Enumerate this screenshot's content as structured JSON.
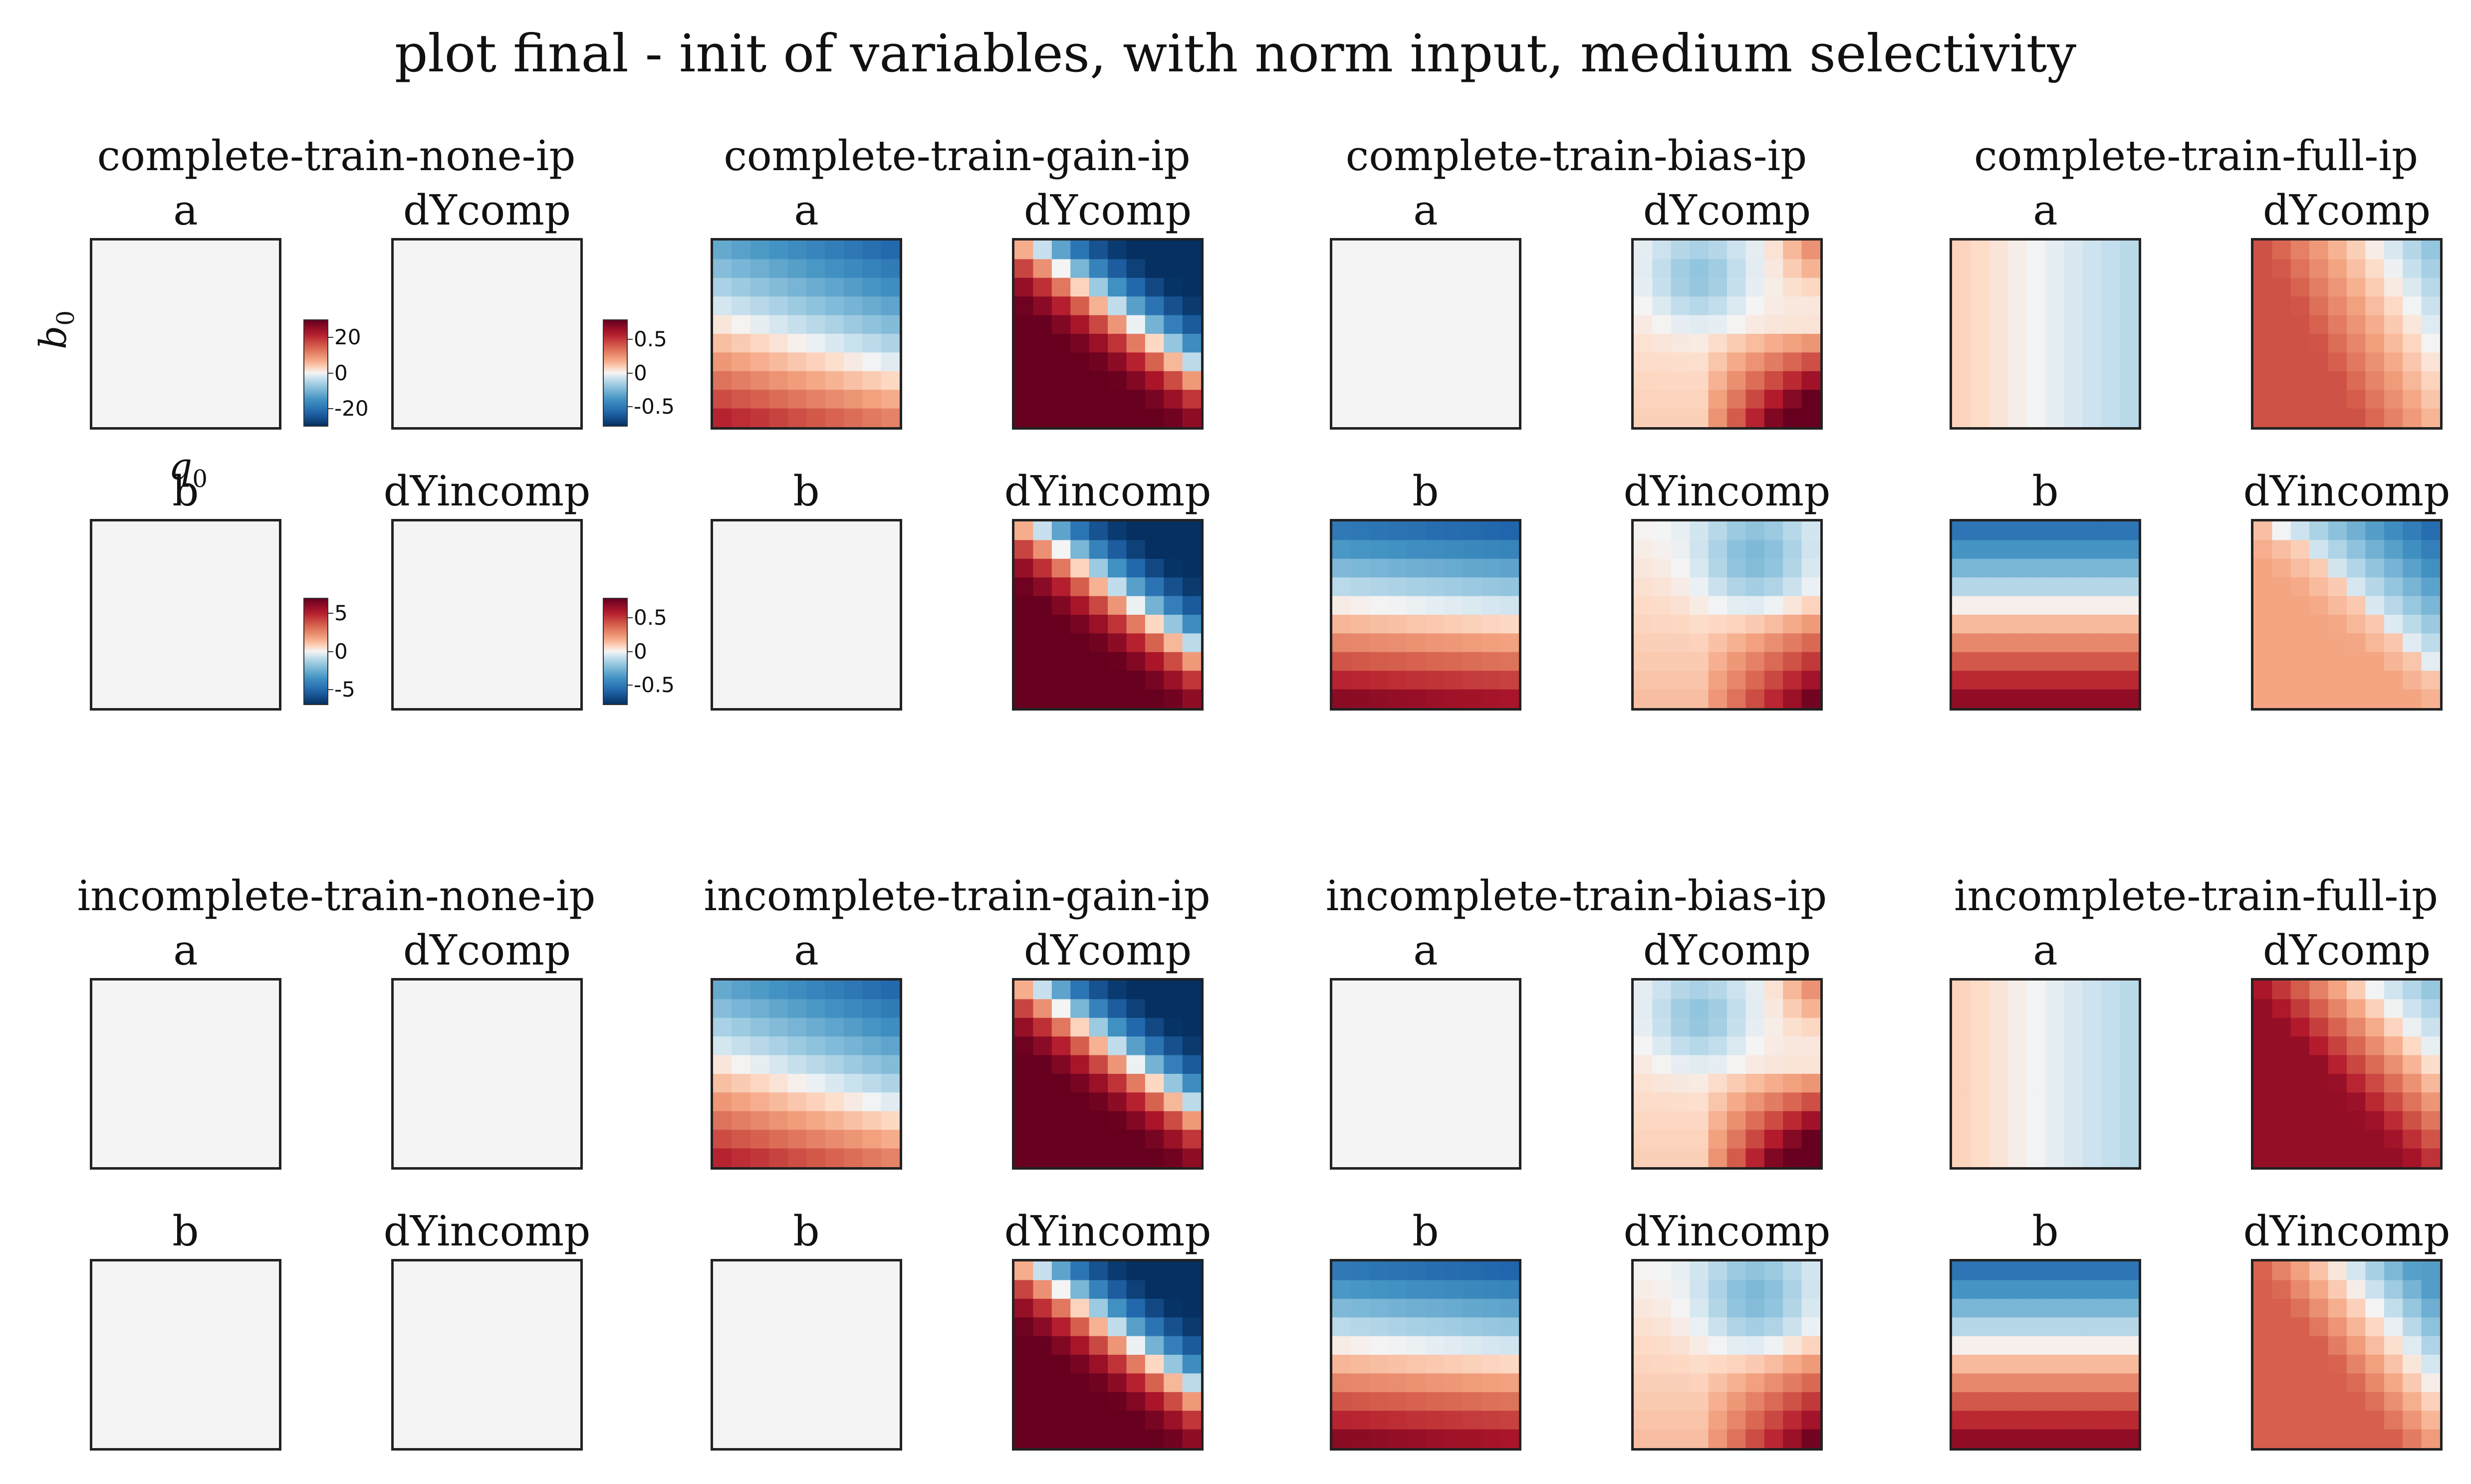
{
  "figure": {
    "title": "plot final - init of variables, with norm input, medium selectivity",
    "ylabel_var": "b",
    "ylabel_sub": "0",
    "xlabel_var": "q",
    "xlabel_sub": "0"
  },
  "colorbars": [
    {
      "ticks": [
        "20",
        "0",
        "-20"
      ],
      "range": [
        -30,
        30
      ],
      "tick_values": [
        20,
        0,
        -20
      ]
    },
    {
      "ticks": [
        "0.5",
        "0",
        "-0.5"
      ],
      "range": [
        -0.8,
        0.8
      ],
      "tick_values": [
        0.5,
        0,
        -0.5
      ]
    },
    {
      "ticks": [
        "5",
        "0",
        "-5"
      ],
      "range": [
        -7,
        7
      ],
      "tick_values": [
        5,
        0,
        -5
      ]
    },
    {
      "ticks": [
        "0.5",
        "0",
        "-0.5"
      ],
      "range": [
        -0.8,
        0.8
      ],
      "tick_values": [
        0.5,
        0,
        -0.5
      ]
    }
  ],
  "colors": {
    "colormap": "RdBu_r",
    "neutral": "#f4f4f4",
    "max_red": "#67001f",
    "max_blue": "#053061",
    "panel_border": "#222222"
  },
  "chart_data": {
    "type": "heatmap",
    "grid_size": 10,
    "value_range": [
      -1,
      1
    ],
    "groups": [
      {
        "title": "complete-train-none-ip",
        "panels": [
          {
            "label": "a",
            "pattern": "flat"
          },
          {
            "label": "dYcomp",
            "pattern": "flat"
          },
          {
            "label": "b",
            "pattern": "flat"
          },
          {
            "label": "dYincomp",
            "pattern": "flat"
          }
        ]
      },
      {
        "title": "complete-train-gain-ip",
        "panels": [
          {
            "label": "a",
            "pattern": "gain_a"
          },
          {
            "label": "dYcomp",
            "pattern": "gain_dy"
          },
          {
            "label": "b",
            "pattern": "flat"
          },
          {
            "label": "dYincomp",
            "pattern": "gain_dy"
          }
        ]
      },
      {
        "title": "complete-train-bias-ip",
        "panels": [
          {
            "label": "a",
            "pattern": "flat"
          },
          {
            "label": "dYcomp",
            "pattern": "bias_dy"
          },
          {
            "label": "b",
            "pattern": "bias_b"
          },
          {
            "label": "dYincomp",
            "pattern": "bias_dy2"
          }
        ]
      },
      {
        "title": "complete-train-full-ip",
        "panels": [
          {
            "label": "a",
            "pattern": "full_a"
          },
          {
            "label": "dYcomp",
            "pattern": "full_dy"
          },
          {
            "label": "b",
            "pattern": "full_b"
          },
          {
            "label": "dYincomp",
            "pattern": "full_dy2"
          }
        ]
      },
      {
        "title": "incomplete-train-none-ip",
        "panels": [
          {
            "label": "a",
            "pattern": "flat"
          },
          {
            "label": "dYcomp",
            "pattern": "flat"
          },
          {
            "label": "b",
            "pattern": "flat"
          },
          {
            "label": "dYincomp",
            "pattern": "flat"
          }
        ]
      },
      {
        "title": "incomplete-train-gain-ip",
        "panels": [
          {
            "label": "a",
            "pattern": "gain_a"
          },
          {
            "label": "dYcomp",
            "pattern": "gain_dy"
          },
          {
            "label": "b",
            "pattern": "flat"
          },
          {
            "label": "dYincomp",
            "pattern": "gain_dy"
          }
        ]
      },
      {
        "title": "incomplete-train-bias-ip",
        "panels": [
          {
            "label": "a",
            "pattern": "flat"
          },
          {
            "label": "dYcomp",
            "pattern": "bias_dy"
          },
          {
            "label": "b",
            "pattern": "bias_b"
          },
          {
            "label": "dYincomp",
            "pattern": "bias_dy2"
          }
        ]
      },
      {
        "title": "incomplete-train-full-ip",
        "panels": [
          {
            "label": "a",
            "pattern": "full_a"
          },
          {
            "label": "dYcomp",
            "pattern": "full_dy3"
          },
          {
            "label": "b",
            "pattern": "full_b"
          },
          {
            "label": "dYincomp",
            "pattern": "full_dy4"
          }
        ]
      }
    ]
  }
}
